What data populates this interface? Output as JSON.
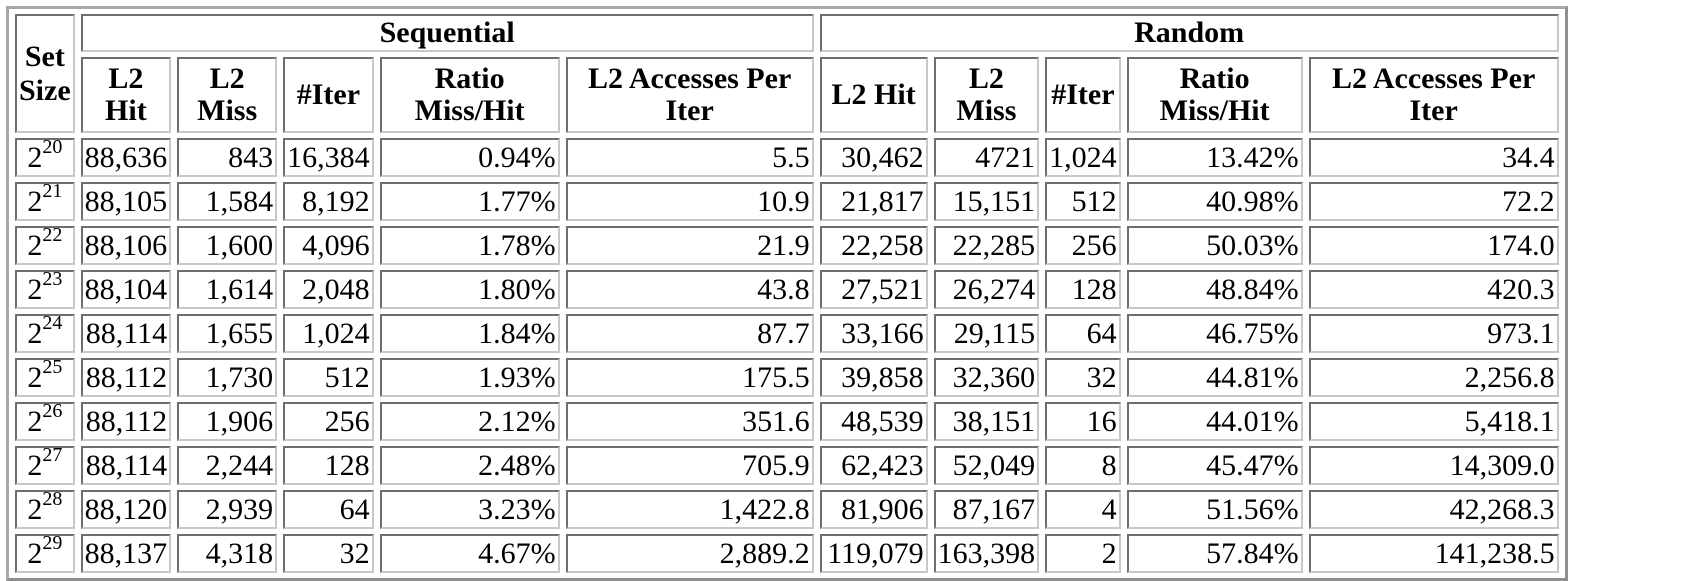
{
  "header": {
    "set_size": "Set Size",
    "groups": [
      "Sequential",
      "Random"
    ],
    "columns": {
      "l2_hit": "L2 Hit",
      "l2_miss": "L2 Miss",
      "iter": "#Iter",
      "ratio": "Ratio Miss/Hit",
      "accesses": "L2 Accesses Per Iter"
    }
  },
  "rows": [
    {
      "base": "2",
      "exp": "20",
      "seq": [
        "88,636",
        "843",
        "16,384",
        "0.94%",
        "5.5"
      ],
      "rand": [
        "30,462",
        "4721",
        "1,024",
        "13.42%",
        "34.4"
      ]
    },
    {
      "base": "2",
      "exp": "21",
      "seq": [
        "88,105",
        "1,584",
        "8,192",
        "1.77%",
        "10.9"
      ],
      "rand": [
        "21,817",
        "15,151",
        "512",
        "40.98%",
        "72.2"
      ]
    },
    {
      "base": "2",
      "exp": "22",
      "seq": [
        "88,106",
        "1,600",
        "4,096",
        "1.78%",
        "21.9"
      ],
      "rand": [
        "22,258",
        "22,285",
        "256",
        "50.03%",
        "174.0"
      ]
    },
    {
      "base": "2",
      "exp": "23",
      "seq": [
        "88,104",
        "1,614",
        "2,048",
        "1.80%",
        "43.8"
      ],
      "rand": [
        "27,521",
        "26,274",
        "128",
        "48.84%",
        "420.3"
      ]
    },
    {
      "base": "2",
      "exp": "24",
      "seq": [
        "88,114",
        "1,655",
        "1,024",
        "1.84%",
        "87.7"
      ],
      "rand": [
        "33,166",
        "29,115",
        "64",
        "46.75%",
        "973.1"
      ]
    },
    {
      "base": "2",
      "exp": "25",
      "seq": [
        "88,112",
        "1,730",
        "512",
        "1.93%",
        "175.5"
      ],
      "rand": [
        "39,858",
        "32,360",
        "32",
        "44.81%",
        "2,256.8"
      ]
    },
    {
      "base": "2",
      "exp": "26",
      "seq": [
        "88,112",
        "1,906",
        "256",
        "2.12%",
        "351.6"
      ],
      "rand": [
        "48,539",
        "38,151",
        "16",
        "44.01%",
        "5,418.1"
      ]
    },
    {
      "base": "2",
      "exp": "27",
      "seq": [
        "88,114",
        "2,244",
        "128",
        "2.48%",
        "705.9"
      ],
      "rand": [
        "62,423",
        "52,049",
        "8",
        "45.47%",
        "14,309.0"
      ]
    },
    {
      "base": "2",
      "exp": "28",
      "seq": [
        "88,120",
        "2,939",
        "64",
        "3.23%",
        "1,422.8"
      ],
      "rand": [
        "81,906",
        "87,167",
        "4",
        "51.56%",
        "42,268.3"
      ]
    },
    {
      "base": "2",
      "exp": "29",
      "seq": [
        "88,137",
        "4,318",
        "32",
        "4.67%",
        "2,889.2"
      ],
      "rand": [
        "119,079",
        "163,398",
        "2",
        "57.84%",
        "141,238.5"
      ]
    }
  ]
}
